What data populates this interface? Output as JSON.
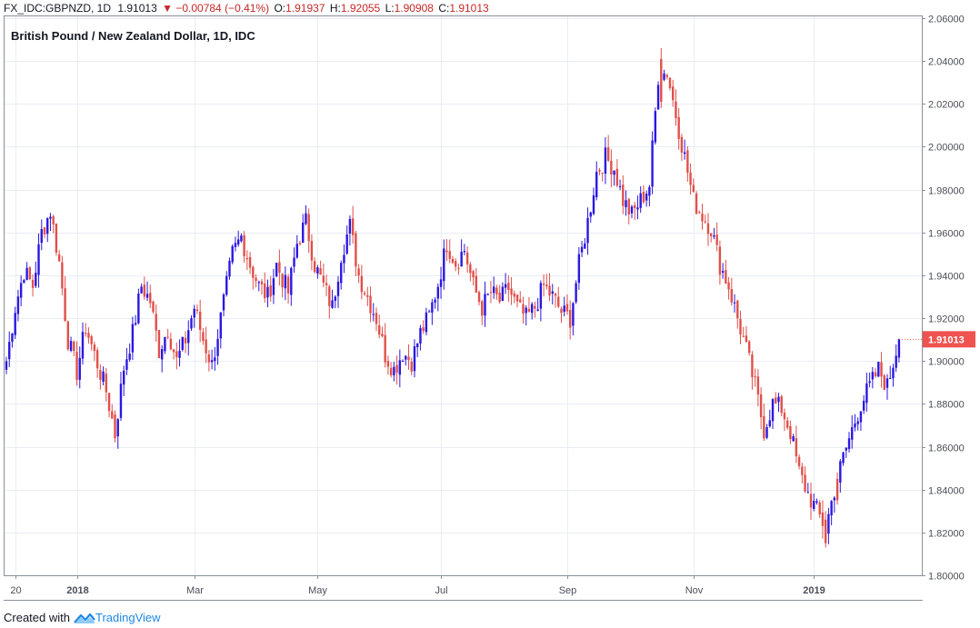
{
  "header": {
    "symbol": "FX_IDC:GBPNZD, 1D",
    "last": "1.91013",
    "change_arrow": "▼",
    "change": "−0.00784 (−0.41%)",
    "o_label": "O:",
    "o_value": "1.91937",
    "h_label": "H:",
    "h_value": "1.92055",
    "l_label": "L:",
    "l_value": "1.90908",
    "c_label": "C:",
    "c_value": "1.91013"
  },
  "footer": {
    "created_with": "Created with",
    "brand": "TradingView",
    "brand_icon": "tradingview-logo-icon"
  },
  "colors": {
    "up": "#2a18e0",
    "down": "#e0504a",
    "grid": "#e9edf3",
    "axis": "#8a8f98",
    "price_tag": "#ef5350"
  },
  "chart_data": {
    "type": "candlestick",
    "title": "British Pound / New Zealand Dollar, 1D, IDC",
    "ylim": [
      1.8,
      2.06
    ],
    "y_ticks": [
      "1.80000",
      "1.82000",
      "1.84000",
      "1.86000",
      "1.88000",
      "1.90000",
      "1.92000",
      "1.94000",
      "1.96000",
      "1.98000",
      "2.00000",
      "2.02000",
      "2.04000",
      "2.06000"
    ],
    "x_ticks": [
      {
        "label": "20",
        "bar": 3,
        "bold": false
      },
      {
        "label": "2018",
        "bar": 24,
        "bold": true
      },
      {
        "label": "Mar",
        "bar": 64,
        "bold": false
      },
      {
        "label": "May",
        "bar": 106,
        "bold": false
      },
      {
        "label": "Jul",
        "bar": 148,
        "bold": false
      },
      {
        "label": "Sep",
        "bar": 191,
        "bold": false
      },
      {
        "label": "Nov",
        "bar": 234,
        "bold": false
      },
      {
        "label": "2019",
        "bar": 275,
        "bold": true
      }
    ],
    "bar_count": 305,
    "last_price_label": "1.91013",
    "last_price": 1.91013,
    "anchors": [
      [
        0,
        1.9
      ],
      [
        3,
        1.925
      ],
      [
        6,
        1.942
      ],
      [
        9,
        1.935
      ],
      [
        12,
        1.96
      ],
      [
        15,
        1.97
      ],
      [
        18,
        1.946
      ],
      [
        21,
        1.91
      ],
      [
        24,
        1.895
      ],
      [
        27,
        1.916
      ],
      [
        30,
        1.903
      ],
      [
        34,
        1.886
      ],
      [
        37,
        1.866
      ],
      [
        40,
        1.897
      ],
      [
        43,
        1.913
      ],
      [
        46,
        1.935
      ],
      [
        49,
        1.928
      ],
      [
        52,
        1.905
      ],
      [
        55,
        1.915
      ],
      [
        58,
        1.9
      ],
      [
        61,
        1.91
      ],
      [
        64,
        1.925
      ],
      [
        67,
        1.91
      ],
      [
        70,
        1.898
      ],
      [
        73,
        1.92
      ],
      [
        77,
        1.95
      ],
      [
        80,
        1.958
      ],
      [
        83,
        1.945
      ],
      [
        86,
        1.935
      ],
      [
        89,
        1.93
      ],
      [
        92,
        1.945
      ],
      [
        96,
        1.932
      ],
      [
        99,
        1.955
      ],
      [
        102,
        1.965
      ],
      [
        105,
        1.945
      ],
      [
        108,
        1.935
      ],
      [
        111,
        1.925
      ],
      [
        114,
        1.95
      ],
      [
        117,
        1.963
      ],
      [
        120,
        1.94
      ],
      [
        123,
        1.93
      ],
      [
        126,
        1.92
      ],
      [
        129,
        1.903
      ],
      [
        132,
        1.896
      ],
      [
        135,
        1.904
      ],
      [
        138,
        1.9
      ],
      [
        141,
        1.913
      ],
      [
        144,
        1.921
      ],
      [
        147,
        1.936
      ],
      [
        150,
        1.955
      ],
      [
        153,
        1.946
      ],
      [
        156,
        1.952
      ],
      [
        159,
        1.935
      ],
      [
        162,
        1.925
      ],
      [
        165,
        1.932
      ],
      [
        168,
        1.928
      ],
      [
        171,
        1.934
      ],
      [
        174,
        1.925
      ],
      [
        177,
        1.92
      ],
      [
        180,
        1.925
      ],
      [
        183,
        1.935
      ],
      [
        186,
        1.93
      ],
      [
        189,
        1.923
      ],
      [
        192,
        1.92
      ],
      [
        195,
        1.945
      ],
      [
        198,
        1.965
      ],
      [
        201,
        1.988
      ],
      [
        204,
        1.995
      ],
      [
        207,
        1.99
      ],
      [
        210,
        1.975
      ],
      [
        213,
        1.968
      ],
      [
        216,
        1.975
      ],
      [
        219,
        1.982
      ],
      [
        222,
        2.033
      ],
      [
        225,
        2.035
      ],
      [
        228,
        2.015
      ],
      [
        231,
        1.995
      ],
      [
        234,
        1.975
      ],
      [
        237,
        1.968
      ],
      [
        240,
        1.962
      ],
      [
        243,
        1.945
      ],
      [
        246,
        1.935
      ],
      [
        249,
        1.92
      ],
      [
        252,
        1.905
      ],
      [
        255,
        1.888
      ],
      [
        258,
        1.868
      ],
      [
        261,
        1.88
      ],
      [
        264,
        1.878
      ],
      [
        267,
        1.867
      ],
      [
        270,
        1.848
      ],
      [
        273,
        1.838
      ],
      [
        276,
        1.83
      ],
      [
        279,
        1.822
      ],
      [
        282,
        1.84
      ],
      [
        285,
        1.855
      ],
      [
        288,
        1.868
      ],
      [
        291,
        1.88
      ],
      [
        294,
        1.888
      ],
      [
        297,
        1.896
      ],
      [
        300,
        1.888
      ],
      [
        303,
        1.905
      ],
      [
        304,
        1.91
      ]
    ],
    "special": [
      [
        223,
        2.041,
        2.046,
        2.018,
        2.021
      ],
      [
        279,
        1.826,
        1.83,
        1.813,
        1.815
      ],
      [
        37,
        1.875,
        1.877,
        1.862,
        1.864
      ],
      [
        283,
        1.845,
        1.848,
        1.833,
        1.835
      ]
    ]
  }
}
